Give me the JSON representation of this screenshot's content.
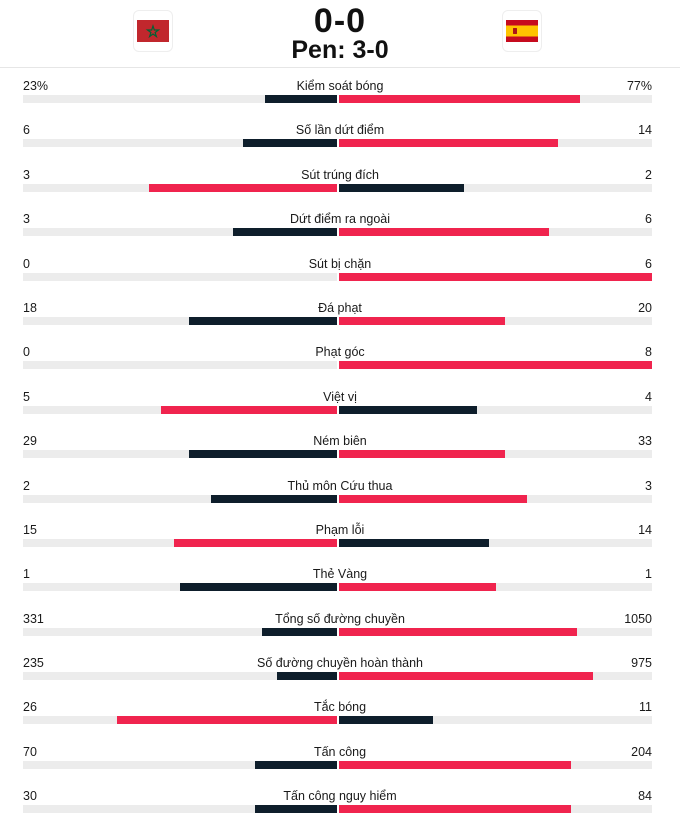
{
  "match": {
    "score": "0-0",
    "penalties": "Pen: 3-0",
    "home_flag": "morocco-flag-icon",
    "away_flag": "spain-flag-icon"
  },
  "colors": {
    "home_bar": "#0e1e2b",
    "away_bar": "#f0244e",
    "track": "#ececec"
  },
  "stats": [
    {
      "label": "Kiểm soát bóng",
      "home": "23%",
      "away": "77%",
      "home_share": 0.23,
      "away_share": 0.77,
      "home_lead": false
    },
    {
      "label": "Số lần dứt điểm",
      "home": "6",
      "away": "14",
      "home_share": 0.3,
      "away_share": 0.7,
      "home_lead": false
    },
    {
      "label": "Sút trúng đích",
      "home": "3",
      "away": "2",
      "home_share": 0.6,
      "away_share": 0.4,
      "home_lead": true
    },
    {
      "label": "Dứt điểm ra ngoài",
      "home": "3",
      "away": "6",
      "home_share": 0.33,
      "away_share": 0.67,
      "home_lead": false
    },
    {
      "label": "Sút bị chặn",
      "home": "0",
      "away": "6",
      "home_share": 0.0,
      "away_share": 1.0,
      "home_lead": false
    },
    {
      "label": "Đá phạt",
      "home": "18",
      "away": "20",
      "home_share": 0.47,
      "away_share": 0.53,
      "home_lead": false
    },
    {
      "label": "Phạt góc",
      "home": "0",
      "away": "8",
      "home_share": 0.0,
      "away_share": 1.0,
      "home_lead": false
    },
    {
      "label": "Việt vị",
      "home": "5",
      "away": "4",
      "home_share": 0.56,
      "away_share": 0.44,
      "home_lead": true
    },
    {
      "label": "Ném biên",
      "home": "29",
      "away": "33",
      "home_share": 0.47,
      "away_share": 0.53,
      "home_lead": false
    },
    {
      "label": "Thủ môn Cứu thua",
      "home": "2",
      "away": "3",
      "home_share": 0.4,
      "away_share": 0.6,
      "home_lead": false
    },
    {
      "label": "Phạm lỗi",
      "home": "15",
      "away": "14",
      "home_share": 0.52,
      "away_share": 0.48,
      "home_lead": true
    },
    {
      "label": "Thẻ Vàng",
      "home": "1",
      "away": "1",
      "home_share": 0.5,
      "away_share": 0.5,
      "home_lead": false
    },
    {
      "label": "Tổng số đường chuyền",
      "home": "331",
      "away": "1050",
      "home_share": 0.24,
      "away_share": 0.76,
      "home_lead": false
    },
    {
      "label": "Số đường chuyền hoàn thành",
      "home": "235",
      "away": "975",
      "home_share": 0.19,
      "away_share": 0.81,
      "home_lead": false
    },
    {
      "label": "Tắc bóng",
      "home": "26",
      "away": "11",
      "home_share": 0.7,
      "away_share": 0.3,
      "home_lead": true
    },
    {
      "label": "Tấn công",
      "home": "70",
      "away": "204",
      "home_share": 0.26,
      "away_share": 0.74,
      "home_lead": false
    },
    {
      "label": "Tấn công nguy hiểm",
      "home": "30",
      "away": "84",
      "home_share": 0.26,
      "away_share": 0.74,
      "home_lead": false
    }
  ]
}
